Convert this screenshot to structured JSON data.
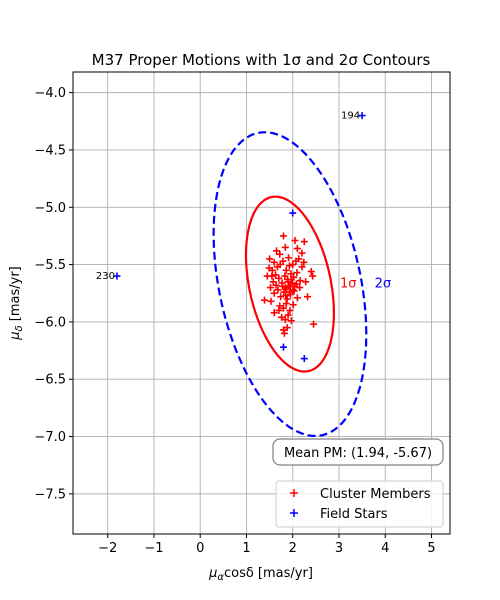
{
  "chart_data": {
    "type": "scatter",
    "title": "M37 Proper Motions with 1σ and 2σ Contours",
    "xlabel_main": "μ",
    "xlabel_sub": "α",
    "xlabel_rest": "cosδ [mas/yr]",
    "ylabel_main": "μ",
    "ylabel_sub": "δ",
    "ylabel_rest": " [mas/yr]",
    "xlim": [
      -2.75,
      5.4
    ],
    "ylim": [
      -7.85,
      -3.82
    ],
    "x_ticks": [
      -2,
      -1,
      0,
      1,
      2,
      3,
      4,
      5
    ],
    "x_tick_labels": [
      "−2",
      "−1",
      "0",
      "1",
      "2",
      "3",
      "4",
      "5"
    ],
    "y_ticks": [
      -7.5,
      -7.0,
      -6.5,
      -6.0,
      -5.5,
      -5.0,
      -4.5,
      -4.0
    ],
    "y_tick_labels": [
      "−7.5",
      "−7.0",
      "−6.5",
      "−6.0",
      "−5.5",
      "−5.0",
      "−4.5",
      "−4.0"
    ],
    "grid": true,
    "legend_position": "lower-right",
    "mean_annotation": "Mean PM: (1.94, -5.67)",
    "series": [
      {
        "name": "Cluster Members",
        "color": "#ff0000",
        "marker": "plus",
        "points": [
          [
            1.65,
            -5.38
          ],
          [
            1.72,
            -5.41
          ],
          [
            1.8,
            -5.25
          ],
          [
            1.84,
            -5.35
          ],
          [
            1.91,
            -5.44
          ],
          [
            2.05,
            -5.29
          ],
          [
            2.25,
            -5.3
          ],
          [
            2.1,
            -5.36
          ],
          [
            1.49,
            -5.53
          ],
          [
            1.55,
            -5.6
          ],
          [
            1.6,
            -5.48
          ],
          [
            1.67,
            -5.52
          ],
          [
            1.73,
            -5.5
          ],
          [
            1.79,
            -5.47
          ],
          [
            1.86,
            -5.55
          ],
          [
            1.93,
            -5.51
          ],
          [
            2.0,
            -5.5
          ],
          [
            2.07,
            -5.47
          ],
          [
            2.13,
            -5.45
          ],
          [
            2.2,
            -5.52
          ],
          [
            1.58,
            -5.65
          ],
          [
            1.64,
            -5.68
          ],
          [
            1.7,
            -5.62
          ],
          [
            1.77,
            -5.66
          ],
          [
            1.83,
            -5.6
          ],
          [
            1.89,
            -5.63
          ],
          [
            1.96,
            -5.58
          ],
          [
            2.02,
            -5.61
          ],
          [
            2.09,
            -5.57
          ],
          [
            2.16,
            -5.64
          ],
          [
            1.6,
            -5.75
          ],
          [
            1.68,
            -5.72
          ],
          [
            1.74,
            -5.78
          ],
          [
            1.81,
            -5.74
          ],
          [
            1.88,
            -5.8
          ],
          [
            1.95,
            -5.76
          ],
          [
            2.03,
            -5.73
          ],
          [
            2.1,
            -5.79
          ],
          [
            1.72,
            -5.86
          ],
          [
            1.8,
            -5.88
          ],
          [
            1.86,
            -5.84
          ],
          [
            1.94,
            -5.9
          ],
          [
            2.01,
            -5.85
          ],
          [
            1.76,
            -5.96
          ],
          [
            1.84,
            -5.98
          ],
          [
            1.9,
            -5.94
          ],
          [
            1.97,
            -5.99
          ],
          [
            1.8,
            -6.07
          ],
          [
            1.88,
            -6.05
          ],
          [
            1.82,
            -6.1
          ],
          [
            1.39,
            -5.81
          ],
          [
            1.52,
            -5.7
          ],
          [
            2.4,
            -5.56
          ],
          [
            2.43,
            -5.6
          ],
          [
            2.45,
            -6.02
          ],
          [
            1.6,
            -5.92
          ],
          [
            1.7,
            -5.9
          ],
          [
            2.28,
            -5.65
          ],
          [
            2.32,
            -5.78
          ],
          [
            1.45,
            -5.6
          ],
          [
            1.53,
            -5.82
          ],
          [
            2.2,
            -5.4
          ],
          [
            1.5,
            -5.45
          ],
          [
            1.95,
            -5.69
          ],
          [
            1.87,
            -5.71
          ],
          [
            1.99,
            -5.66
          ],
          [
            1.92,
            -5.69
          ],
          [
            1.84,
            -5.7
          ],
          [
            2.0,
            -5.72
          ],
          [
            1.9,
            -5.65
          ],
          [
            1.93,
            -5.74
          ],
          [
            1.97,
            -5.63
          ],
          [
            1.85,
            -5.77
          ],
          [
            2.04,
            -5.69
          ],
          [
            1.78,
            -5.69
          ],
          [
            2.08,
            -5.67
          ],
          [
            1.63,
            -5.59
          ],
          [
            2.15,
            -5.7
          ],
          [
            1.56,
            -5.55
          ],
          [
            2.24,
            -5.48
          ]
        ]
      },
      {
        "name": "Field Stars",
        "color": "#0000ff",
        "marker": "plus",
        "points": [
          [
            3.5,
            -4.2
          ],
          [
            -1.8,
            -5.6
          ],
          [
            2.0,
            -5.05
          ],
          [
            2.25,
            -6.32
          ],
          [
            1.8,
            -6.22
          ]
        ]
      }
    ],
    "star_labels": [
      {
        "text": "194",
        "x": 3.5,
        "y": -4.2
      },
      {
        "text": "230",
        "x": -1.8,
        "y": -5.6
      }
    ],
    "contours": [
      {
        "label": "1σ",
        "color": "#ff0000",
        "style": "solid",
        "center": [
          1.94,
          -5.67
        ],
        "x_semi": 0.95,
        "y_semi": 0.72,
        "tilt_y_per_x": -0.265,
        "label_pos": [
          3.2,
          -5.7
        ]
      },
      {
        "label": "2σ",
        "color": "#0000ff",
        "style": "dashed",
        "center": [
          1.94,
          -5.67
        ],
        "x_semi": 1.65,
        "y_semi": 1.25,
        "tilt_y_per_x": -0.265,
        "label_pos": [
          3.95,
          -5.7
        ]
      }
    ]
  }
}
